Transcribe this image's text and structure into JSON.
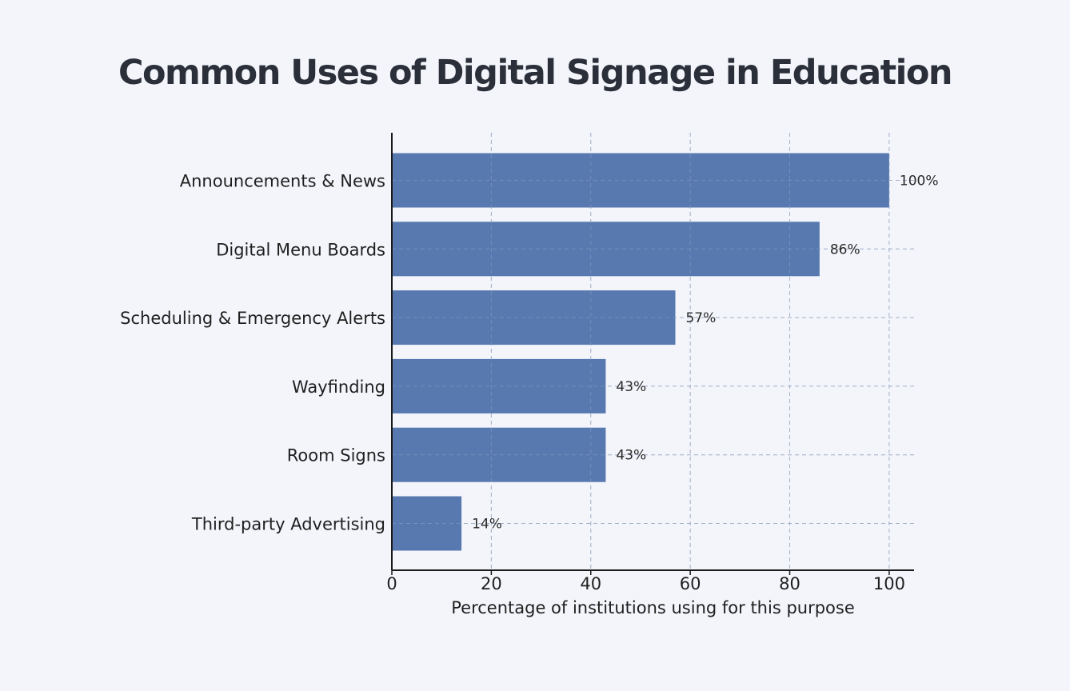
{
  "chart_data": {
    "type": "bar",
    "orientation": "horizontal",
    "title": "Common Uses of Digital Signage in Education",
    "xlabel": "Percentage of institutions using for this purpose",
    "ylabel": "",
    "categories": [
      "Announcements & News",
      "Digital Menu Boards",
      "Scheduling & Emergency Alerts",
      "Wayfinding",
      "Room Signs",
      "Third-party Advertising"
    ],
    "values": [
      100,
      86,
      57,
      43,
      43,
      14
    ],
    "value_labels": [
      "100%",
      "86%",
      "57%",
      "43%",
      "43%",
      "14%"
    ],
    "xlim": [
      0,
      105
    ],
    "xticks": [
      0,
      20,
      40,
      60,
      80,
      100
    ],
    "grid": true,
    "bar_color": "#4a6ea9",
    "grid_color": "#c3c7d0",
    "axis_color": "#1a1a1a"
  }
}
